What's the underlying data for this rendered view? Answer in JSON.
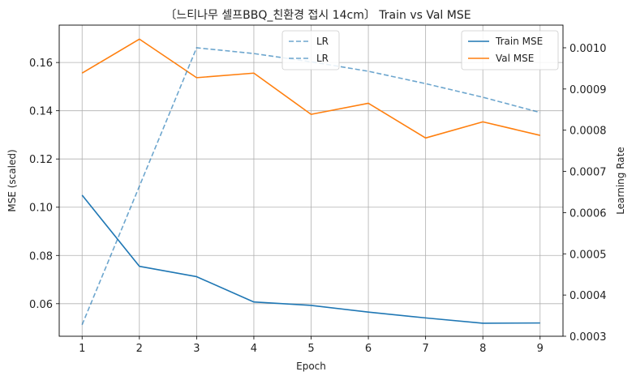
{
  "chart_data": {
    "type": "line",
    "title": "〔느티나무 셀프BBQ_친환경 접시 14cm〕 Train vs Val MSE",
    "xlabel": "Epoch",
    "ylabel": "MSE (scaled)",
    "y2label": "Learning Rate",
    "x": [
      1,
      2,
      3,
      4,
      5,
      6,
      7,
      8,
      9
    ],
    "xticks": [
      "1",
      "2",
      "3",
      "4",
      "5",
      "6",
      "7",
      "8",
      "9"
    ],
    "xlim": [
      0.6,
      9.4
    ],
    "ylim": [
      0.0465,
      0.1755
    ],
    "yticks": [
      "0.06",
      "0.08",
      "0.10",
      "0.12",
      "0.14",
      "0.16"
    ],
    "y2lim": [
      0.0003,
      0.001055
    ],
    "y2ticks": [
      "0.0003",
      "0.0004",
      "0.0005",
      "0.0006",
      "0.0007",
      "0.0008",
      "0.0009",
      "0.0010"
    ],
    "grid": true,
    "series": [
      {
        "name": "Train MSE",
        "axis": "left",
        "color": "#1f77b4",
        "style": "solid",
        "values": [
          0.105,
          0.0755,
          0.0712,
          0.0607,
          0.0593,
          0.0565,
          0.0541,
          0.0519,
          0.052
        ]
      },
      {
        "name": "Val MSE",
        "axis": "left",
        "color": "#ff7f0e",
        "style": "solid",
        "values": [
          0.1556,
          0.1697,
          0.1537,
          0.1556,
          0.1385,
          0.1431,
          0.1287,
          0.1354,
          0.1298
        ]
      },
      {
        "name": "LR",
        "axis": "right",
        "color": "#1f77b4",
        "style": "dashed",
        "opacity": 0.65,
        "values": [
          0.000328,
          0.000664,
          0.001,
          0.000986,
          0.000966,
          0.000943,
          0.000913,
          0.00088,
          0.000843
        ]
      }
    ],
    "legends": [
      {
        "placement": "top-center",
        "entries": [
          "LR",
          "LR"
        ]
      },
      {
        "placement": "top-right",
        "entries": [
          "Train MSE",
          "Val MSE"
        ]
      }
    ]
  }
}
